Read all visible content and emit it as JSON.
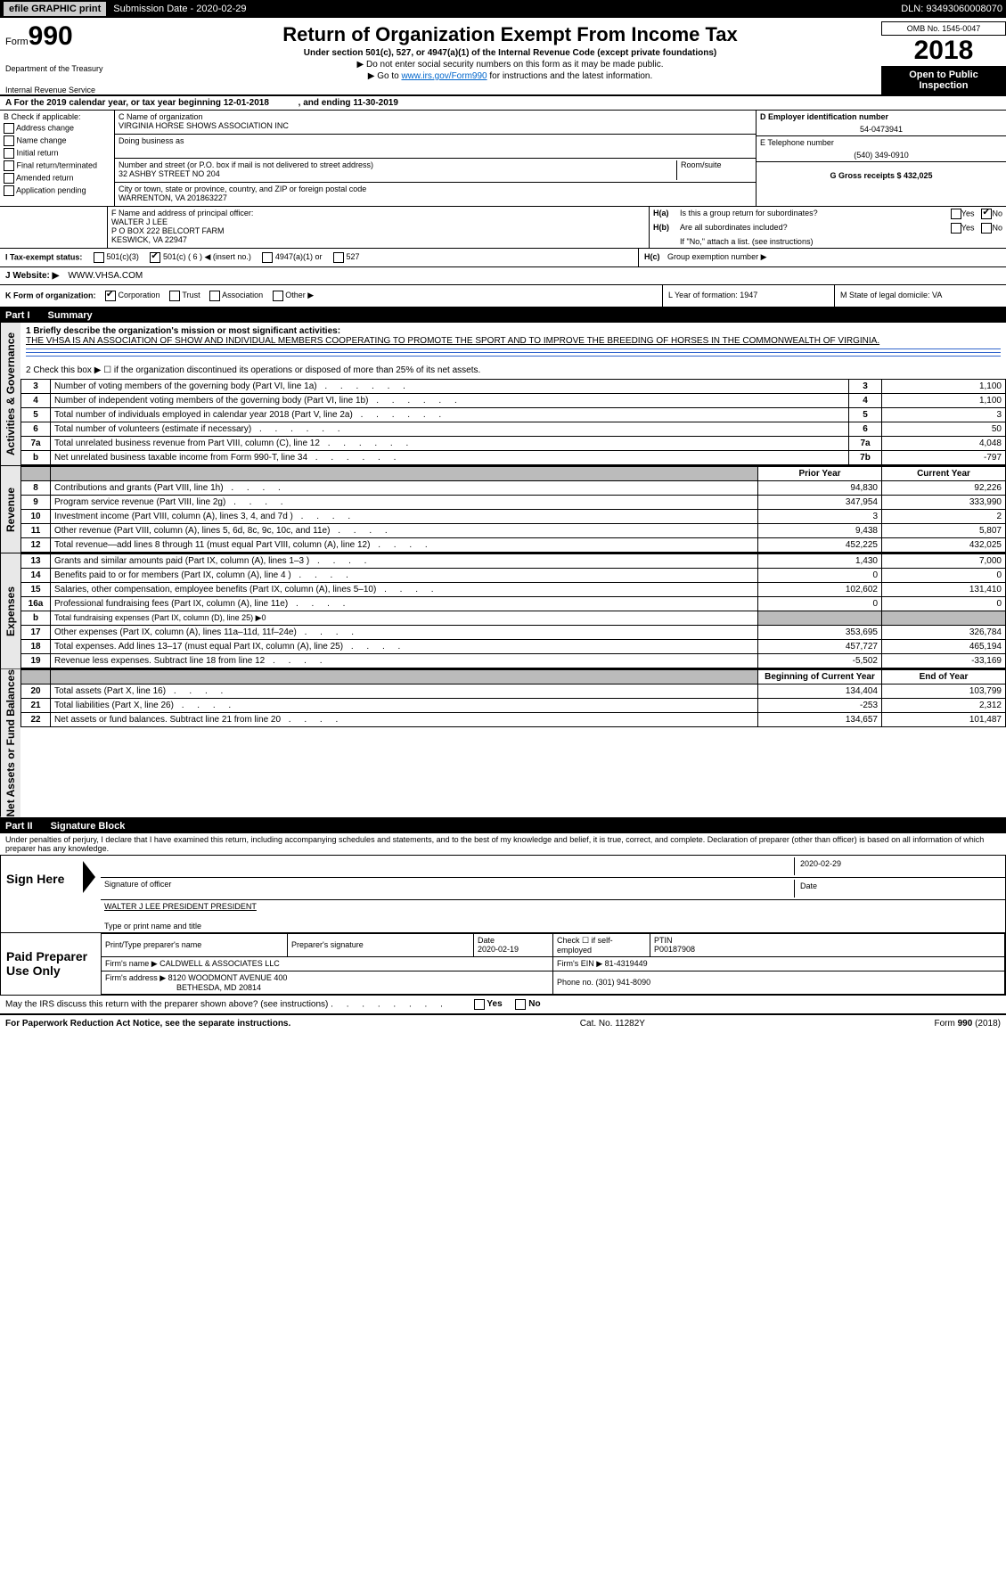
{
  "topbar": {
    "efile_label": "efile GRAPHIC print",
    "submission_label": "Submission Date - 2020-02-29",
    "dln_label": "DLN: 93493060008070"
  },
  "header": {
    "form_prefix": "Form",
    "form_number": "990",
    "dept": "Department of the Treasury",
    "irs": "Internal Revenue Service",
    "title": "Return of Organization Exempt From Income Tax",
    "subtitle": "Under section 501(c), 527, or 4947(a)(1) of the Internal Revenue Code (except private foundations)",
    "arrow1": "▶ Do not enter social security numbers on this form as it may be made public.",
    "arrow2_pre": "▶ Go to ",
    "arrow2_link": "www.irs.gov/Form990",
    "arrow2_post": " for instructions and the latest information.",
    "omb": "OMB No. 1545-0047",
    "year": "2018",
    "open": "Open to Public Inspection"
  },
  "lineA": {
    "label": "A  For the 2019 calendar year, or tax year beginning 12-01-2018",
    "mid": ", and ending 11-30-2019"
  },
  "colB": {
    "title": "B Check if applicable:",
    "items": [
      "Address change",
      "Name change",
      "Initial return",
      "Final return/terminated",
      "Amended return",
      "Application pending"
    ]
  },
  "colC": {
    "name_label": "C Name of organization",
    "name": "VIRGINIA HORSE SHOWS ASSOCIATION INC",
    "dba_label": "Doing business as",
    "addr_label": "Number and street (or P.O. box if mail is not delivered to street address)",
    "room_label": "Room/suite",
    "addr": "32 ASHBY STREET NO 204",
    "city_label": "City or town, state or province, country, and ZIP or foreign postal code",
    "city": "WARRENTON, VA  201863227"
  },
  "colD": {
    "label": "D Employer identification number",
    "val": "54-0473941"
  },
  "colE": {
    "label": "E Telephone number",
    "val": "(540) 349-0910"
  },
  "colG": {
    "label": "G Gross receipts $ 432,025"
  },
  "colF": {
    "label": "F  Name and address of principal officer:",
    "name": "WALTER J LEE",
    "addr1": "P O BOX 222 BELCORT FARM",
    "addr2": "KESWICK, VA  22947"
  },
  "colH": {
    "a_label": "H(a)",
    "a_text": "Is this a group return for subordinates?",
    "b_label": "H(b)",
    "b_text": "Are all subordinates included?",
    "b_note": "If \"No,\" attach a list. (see instructions)",
    "c_label": "H(c)",
    "c_text": "Group exemption number ▶",
    "yes": "Yes",
    "no": "No"
  },
  "rowI": {
    "label": "I   Tax-exempt status:",
    "o1": "501(c)(3)",
    "o2": "501(c) ( 6 ) ◀ (insert no.)",
    "o3": "4947(a)(1) or",
    "o4": "527"
  },
  "rowJ": {
    "label": "J   Website: ▶",
    "val": "WWW.VHSA.COM"
  },
  "rowK": {
    "label": "K Form of organization:",
    "o1": "Corporation",
    "o2": "Trust",
    "o3": "Association",
    "o4": "Other ▶"
  },
  "rowL": {
    "label": "L Year of formation: 1947"
  },
  "rowM": {
    "label": "M State of legal domicile: VA"
  },
  "part1": {
    "part": "Part I",
    "title": "Summary",
    "line1_label": "1  Briefly describe the organization's mission or most significant activities:",
    "line1_text": "THE VHSA IS AN ASSOCIATION OF SHOW AND INDIVIDUAL MEMBERS COOPERATING TO PROMOTE THE SPORT AND TO IMPROVE THE BREEDING OF HORSES IN THE COMMONWEALTH OF VIRGINIA.",
    "line2": "2   Check this box ▶ ☐  if the organization discontinued its operations or disposed of more than 25% of its net assets."
  },
  "governance_rows": [
    {
      "n": "3",
      "desc": "Number of voting members of the governing body (Part VI, line 1a)",
      "box": "3",
      "val": "1,100"
    },
    {
      "n": "4",
      "desc": "Number of independent voting members of the governing body (Part VI, line 1b)",
      "box": "4",
      "val": "1,100"
    },
    {
      "n": "5",
      "desc": "Total number of individuals employed in calendar year 2018 (Part V, line 2a)",
      "box": "5",
      "val": "3"
    },
    {
      "n": "6",
      "desc": "Total number of volunteers (estimate if necessary)",
      "box": "6",
      "val": "50"
    },
    {
      "n": "7a",
      "desc": "Total unrelated business revenue from Part VIII, column (C), line 12",
      "box": "7a",
      "val": "4,048"
    },
    {
      "n": "b",
      "desc": "Net unrelated business taxable income from Form 990-T, line 34",
      "box": "7b",
      "val": "-797"
    }
  ],
  "two_col_header": {
    "prior": "Prior Year",
    "current": "Current Year"
  },
  "revenue_rows": [
    {
      "n": "8",
      "desc": "Contributions and grants (Part VIII, line 1h)",
      "p": "94,830",
      "c": "92,226"
    },
    {
      "n": "9",
      "desc": "Program service revenue (Part VIII, line 2g)",
      "p": "347,954",
      "c": "333,990"
    },
    {
      "n": "10",
      "desc": "Investment income (Part VIII, column (A), lines 3, 4, and 7d )",
      "p": "3",
      "c": "2"
    },
    {
      "n": "11",
      "desc": "Other revenue (Part VIII, column (A), lines 5, 6d, 8c, 9c, 10c, and 11e)",
      "p": "9,438",
      "c": "5,807"
    },
    {
      "n": "12",
      "desc": "Total revenue—add lines 8 through 11 (must equal Part VIII, column (A), line 12)",
      "p": "452,225",
      "c": "432,025"
    }
  ],
  "expense_rows": [
    {
      "n": "13",
      "desc": "Grants and similar amounts paid (Part IX, column (A), lines 1–3 )",
      "p": "1,430",
      "c": "7,000"
    },
    {
      "n": "14",
      "desc": "Benefits paid to or for members (Part IX, column (A), line 4 )",
      "p": "0",
      "c": "0"
    },
    {
      "n": "15",
      "desc": "Salaries, other compensation, employee benefits (Part IX, column (A), lines 5–10)",
      "p": "102,602",
      "c": "131,410"
    },
    {
      "n": "16a",
      "desc": "Professional fundraising fees (Part IX, column (A), line 11e)",
      "p": "0",
      "c": "0"
    },
    {
      "n": "b",
      "desc": "Total fundraising expenses (Part IX, column (D), line 25) ▶0",
      "p": "",
      "c": "",
      "blank": true
    },
    {
      "n": "17",
      "desc": "Other expenses (Part IX, column (A), lines 11a–11d, 11f–24e)",
      "p": "353,695",
      "c": "326,784"
    },
    {
      "n": "18",
      "desc": "Total expenses. Add lines 13–17 (must equal Part IX, column (A), line 25)",
      "p": "457,727",
      "c": "465,194"
    },
    {
      "n": "19",
      "desc": "Revenue less expenses. Subtract line 18 from line 12",
      "p": "-5,502",
      "c": "-33,169"
    }
  ],
  "net_header": {
    "prior": "Beginning of Current Year",
    "current": "End of Year"
  },
  "net_rows": [
    {
      "n": "20",
      "desc": "Total assets (Part X, line 16)",
      "p": "134,404",
      "c": "103,799"
    },
    {
      "n": "21",
      "desc": "Total liabilities (Part X, line 26)",
      "p": "-253",
      "c": "2,312"
    },
    {
      "n": "22",
      "desc": "Net assets or fund balances. Subtract line 21 from line 20",
      "p": "134,657",
      "c": "101,487"
    }
  ],
  "part2": {
    "part": "Part II",
    "title": "Signature Block",
    "perjury": "Under penalties of perjury, I declare that I have examined this return, including accompanying schedules and statements, and to the best of my knowledge and belief, it is true, correct, and complete. Declaration of preparer (other than officer) is based on all information of which preparer has any knowledge."
  },
  "sign": {
    "here": "Sign Here",
    "sig_officer": "Signature of officer",
    "date": "2020-02-29",
    "date_lbl": "Date",
    "name": "WALTER J LEE PRESIDENT  PRESIDENT",
    "name_lbl": "Type or print name and title"
  },
  "prep": {
    "here": "Paid Preparer Use Only",
    "h1": "Print/Type preparer's name",
    "h2": "Preparer's signature",
    "h3": "Date",
    "h3v": "2020-02-19",
    "h4": "Check ☐ if self-employed",
    "h5": "PTIN",
    "h5v": "P00187908",
    "firm_lbl": "Firm's name    ▶",
    "firm": "CALDWELL & ASSOCIATES LLC",
    "ein_lbl": "Firm's EIN ▶ 81-4319449",
    "addr_lbl": "Firm's address ▶",
    "addr1": "8120 WOODMONT AVENUE 400",
    "addr2": "BETHESDA, MD   20814",
    "phone_lbl": "Phone no. (301) 941-8090"
  },
  "discuss": {
    "text": "May the IRS discuss this return with the preparer shown above? (see instructions)",
    "yes": "Yes",
    "no": "No"
  },
  "footer": {
    "left": "For Paperwork Reduction Act Notice, see the separate instructions.",
    "mid": "Cat. No. 11282Y",
    "right": "Form 990 (2018)"
  },
  "labels": {
    "gov": "Activities & Governance",
    "rev": "Revenue",
    "exp": "Expenses",
    "net": "Net Assets or Fund Balances"
  }
}
